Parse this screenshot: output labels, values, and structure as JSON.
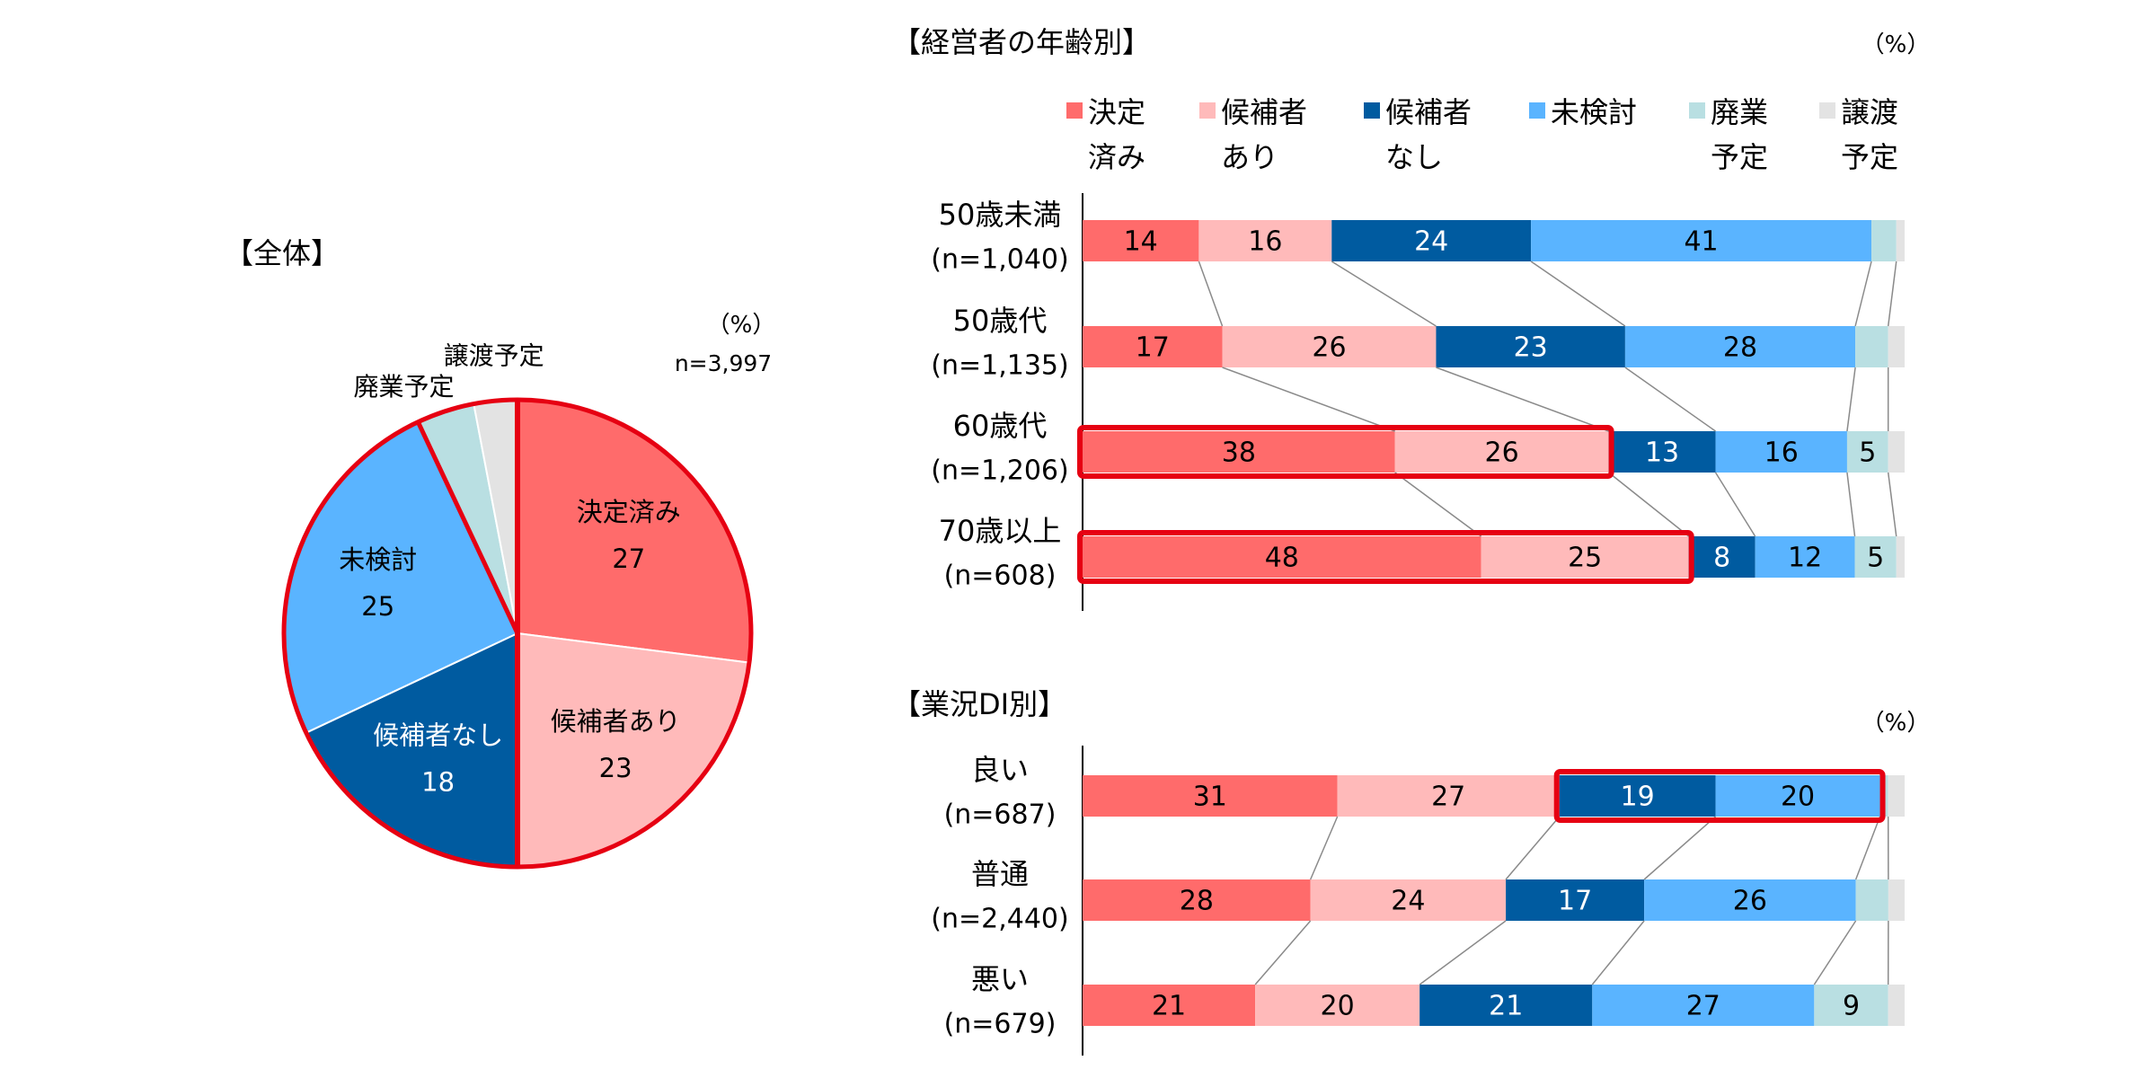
{
  "colors": {
    "decided": "#FF6B6B",
    "has_candidate": "#FFBABA",
    "no_candidate": "#005BA0",
    "not_considered": "#5AB4FF",
    "closure": "#B9DFE2",
    "transfer": "#E3E3E3",
    "highlight": "#E60012"
  },
  "legend": [
    {
      "key": "decided",
      "lines": [
        "決定",
        "済み"
      ]
    },
    {
      "key": "has_candidate",
      "lines": [
        "候補者",
        "あり"
      ]
    },
    {
      "key": "no_candidate",
      "lines": [
        "候補者",
        "なし"
      ]
    },
    {
      "key": "not_considered",
      "lines": [
        "未検討"
      ]
    },
    {
      "key": "closure",
      "lines": [
        "廃業",
        "予定"
      ]
    },
    {
      "key": "transfer",
      "lines": [
        "譲渡",
        "予定"
      ]
    }
  ],
  "chart_data": [
    {
      "type": "pie",
      "title": "【全体】",
      "unit": "（%）",
      "n_label": "n=3,997",
      "slices": [
        {
          "key": "decided",
          "label": "決定済み",
          "value": 27,
          "show_value": true
        },
        {
          "key": "has_candidate",
          "label": "候補者あり",
          "value": 23,
          "show_value": true
        },
        {
          "key": "no_candidate",
          "label": "候補者なし",
          "value": 18,
          "show_value": true
        },
        {
          "key": "not_considered",
          "label": "未検討",
          "value": 25,
          "show_value": true
        },
        {
          "key": "closure",
          "label": "廃業予定",
          "value": 4,
          "show_value": false
        },
        {
          "key": "transfer",
          "label": "譲渡予定",
          "value": 3,
          "show_value": false
        }
      ]
    },
    {
      "type": "bar",
      "stacked": true,
      "orientation": "horizontal",
      "title": "【経営者の年齢別】",
      "unit": "（%）",
      "series_keys": [
        "decided",
        "has_candidate",
        "no_candidate",
        "not_considered",
        "closure",
        "transfer"
      ],
      "rows": [
        {
          "label": "50歳未満",
          "n": "(n=1,040)",
          "values": [
            14,
            16,
            24,
            41,
            3,
            1
          ],
          "labels": [
            "14",
            "16",
            "24",
            "41",
            "",
            ""
          ]
        },
        {
          "label": "50歳代",
          "n": "(n=1,135)",
          "values": [
            17,
            26,
            23,
            28,
            4,
            2
          ],
          "labels": [
            "17",
            "26",
            "23",
            "28",
            "",
            ""
          ]
        },
        {
          "label": "60歳代",
          "n": "(n=1,206)",
          "values": [
            38,
            26,
            13,
            16,
            5,
            2
          ],
          "labels": [
            "38",
            "26",
            "13",
            "16",
            "5",
            ""
          ]
        },
        {
          "label": "70歳以上",
          "n": "(n=608)",
          "values": [
            48,
            25,
            8,
            12,
            5,
            1
          ],
          "labels": [
            "48",
            "25",
            "8",
            "12",
            "5",
            ""
          ]
        }
      ],
      "highlights": [
        {
          "row": 2,
          "from": 0,
          "to": 1
        },
        {
          "row": 3,
          "from": 0,
          "to": 1
        }
      ]
    },
    {
      "type": "bar",
      "stacked": true,
      "orientation": "horizontal",
      "title": "【業況DI別】",
      "unit": "（%）",
      "series_keys": [
        "decided",
        "has_candidate",
        "no_candidate",
        "not_considered",
        "closure",
        "transfer"
      ],
      "rows": [
        {
          "label": "良い",
          "n": "(n=687)",
          "values": [
            31,
            27,
            19,
            20,
            1,
            2
          ],
          "labels": [
            "31",
            "27",
            "19",
            "20",
            "",
            ""
          ]
        },
        {
          "label": "普通",
          "n": "(n=2,440)",
          "values": [
            28,
            24,
            17,
            26,
            4,
            2
          ],
          "labels": [
            "28",
            "24",
            "17",
            "26",
            "",
            ""
          ]
        },
        {
          "label": "悪い",
          "n": "(n=679)",
          "values": [
            21,
            20,
            21,
            27,
            9,
            2
          ],
          "labels": [
            "21",
            "20",
            "21",
            "27",
            "9",
            ""
          ]
        }
      ],
      "highlights": [
        {
          "row": 0,
          "from": 2,
          "to": 3
        }
      ]
    }
  ]
}
